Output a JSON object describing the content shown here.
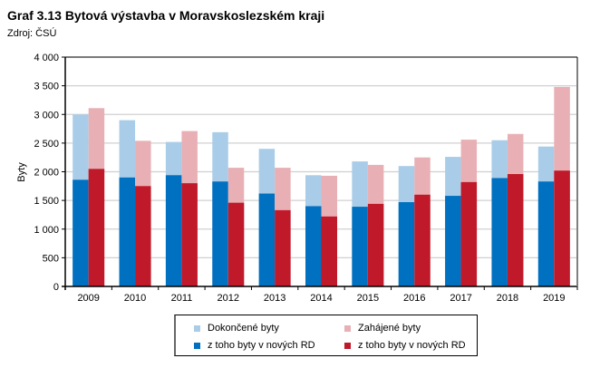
{
  "header": {
    "title": "Graf 3.13 Bytová výstavba v Moravskoslezském kraji",
    "source": "Zdroj: ČSÚ"
  },
  "chart_data": {
    "type": "bar",
    "title": "Graf 3.13 Bytová výstavba v Moravskoslezském kraji",
    "subtitle": "Zdroj: ČSÚ",
    "xlabel": "",
    "ylabel": "Byty",
    "ylim": [
      0,
      4000
    ],
    "yticks": [
      0,
      500,
      1000,
      1500,
      2000,
      2500,
      3000,
      3500,
      4000
    ],
    "ytick_labels": [
      "0",
      "500",
      "1 000",
      "1 500",
      "2 000",
      "2 500",
      "3 000",
      "3 500",
      "4 000"
    ],
    "grid": true,
    "legend_position": "bottom",
    "categories": [
      "2009",
      "2010",
      "2011",
      "2012",
      "2013",
      "2014",
      "2015",
      "2016",
      "2017",
      "2018",
      "2019"
    ],
    "series": [
      {
        "name": "Dokončené byty",
        "group": "completed",
        "layer": "total",
        "color": "#a9cde8",
        "values": [
          3000,
          2900,
          2520,
          2690,
          2400,
          1940,
          2180,
          2100,
          2260,
          2550,
          2440
        ]
      },
      {
        "name": "z toho byty v nových RD",
        "group": "completed",
        "layer": "subset",
        "color": "#0070c0",
        "values": [
          1860,
          1900,
          1940,
          1830,
          1620,
          1400,
          1390,
          1470,
          1580,
          1890,
          1830
        ]
      },
      {
        "name": "Zahájené byty",
        "group": "started",
        "layer": "total",
        "color": "#e8b0b5",
        "values": [
          3110,
          2540,
          2710,
          2070,
          2070,
          1930,
          2120,
          2250,
          2560,
          2660,
          3480
        ]
      },
      {
        "name": "z toho byty v nových RD",
        "group": "started",
        "layer": "subset",
        "color": "#c0192a",
        "values": [
          2050,
          1750,
          1800,
          1460,
          1330,
          1220,
          1440,
          1600,
          1820,
          1960,
          2020
        ]
      }
    ]
  },
  "legend": [
    {
      "label": "Dokončené byty",
      "color": "#a9cde8"
    },
    {
      "label": "Zahájené byty",
      "color": "#e8b0b5"
    },
    {
      "label": "z toho byty v nových RD",
      "color": "#0070c0"
    },
    {
      "label": "z toho byty v nových RD",
      "color": "#c0192a"
    }
  ]
}
